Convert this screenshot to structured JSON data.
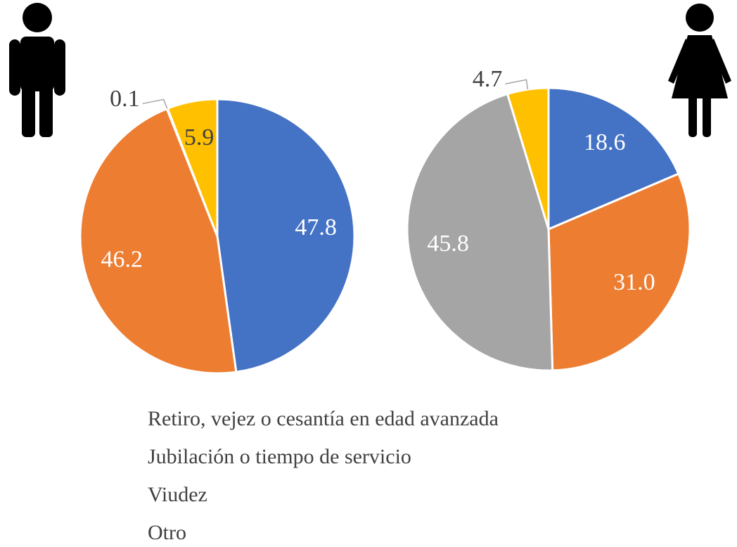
{
  "chart_data": [
    {
      "type": "pie",
      "values": [
        47.8,
        46.2,
        0.1,
        5.9
      ],
      "value_labels": [
        "47.8",
        "46.2",
        "0.1",
        "5.9"
      ],
      "colors": [
        "#4472c4",
        "#ed7d31",
        "#a5a5a5",
        "#ffc000"
      ]
    },
    {
      "type": "pie",
      "values": [
        18.6,
        31.0,
        45.8,
        4.7
      ],
      "value_labels": [
        "18.6",
        "31.0",
        "45.8",
        "4.7"
      ],
      "colors": [
        "#4472c4",
        "#ed7d31",
        "#a5a5a5",
        "#ffc000"
      ]
    }
  ],
  "legend": [
    "Retiro, vejez o cesantía en edad avanzada",
    "Jubilación o tiempo de servicio",
    "Viudez",
    "Otro"
  ]
}
